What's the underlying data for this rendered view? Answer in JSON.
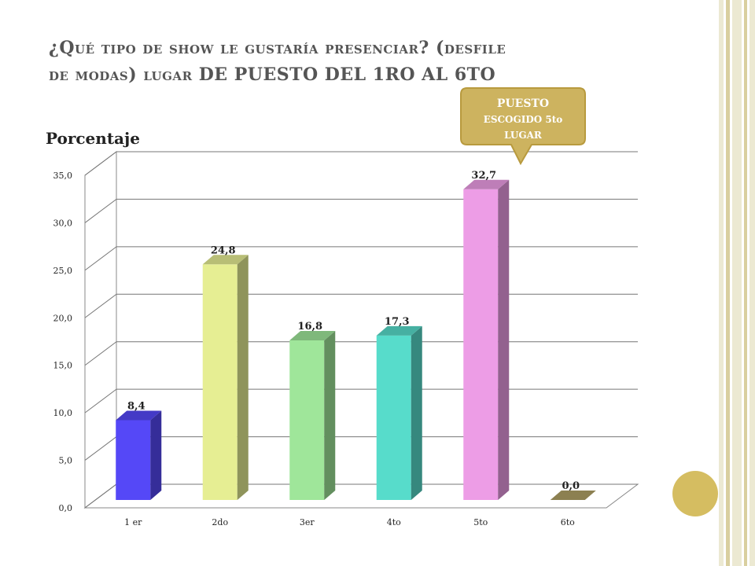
{
  "slide": {
    "title_line1": "¿Qué tipo de show le gustaría presenciar? (desfile",
    "title_line2a": "de modas) lugar ",
    "title_line2b": "DE PUESTO DEL 1RO AL 6TO"
  },
  "callout": {
    "line1": "PUESTO",
    "line2": "ESCOGIDO 5to",
    "line3": "LUGAR"
  },
  "colors": {
    "stripe1": "#e9e6c9",
    "stripe2": "#d6cc9c",
    "callout": "#cdb35f",
    "circle": "#d5bd61"
  },
  "chart_data": {
    "type": "bar",
    "ylabel": "Porcentaje",
    "categories": [
      "1 er",
      "2do",
      "3er",
      "4to",
      "5to",
      "6to"
    ],
    "values": [
      8.4,
      24.8,
      16.8,
      17.3,
      32.7,
      0.0
    ],
    "value_labels": [
      "8,4",
      "24,8",
      "16,8",
      "17,3",
      "32,7",
      "0,0"
    ],
    "yticks": [
      "0,0",
      "5,0",
      "10,0",
      "15,0",
      "20,0",
      "25,0",
      "30,0",
      "35,0"
    ],
    "ylim": [
      0,
      35
    ],
    "grid": true,
    "colors": [
      "#5548f7",
      "#e6ee93",
      "#9fe69a",
      "#57dccb",
      "#ed9de6",
      "#8c8051"
    ]
  }
}
